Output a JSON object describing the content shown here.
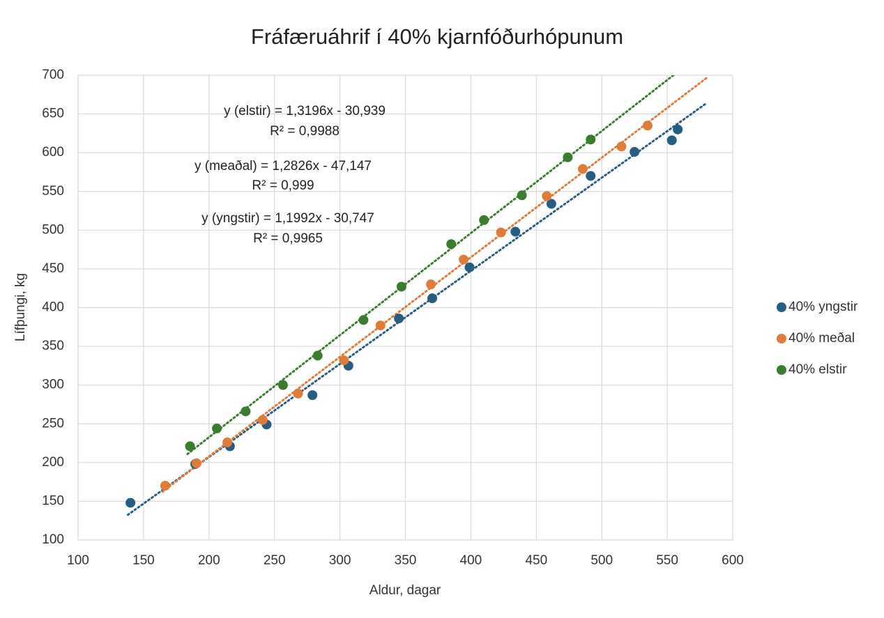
{
  "chart_data": {
    "type": "scatter",
    "title": "Fráfæruáhrif í 40% kjarnfóðurhópunum",
    "x_label": "Aldur, dagar",
    "y_label": "Lífþungi, kg",
    "xlim": [
      100,
      600
    ],
    "xticks": [
      100,
      150,
      200,
      250,
      300,
      350,
      400,
      450,
      500,
      550,
      600
    ],
    "ylim": [
      100,
      700
    ],
    "yticks": [
      100,
      150,
      200,
      250,
      300,
      350,
      400,
      450,
      500,
      550,
      600,
      650,
      700
    ],
    "grid": true,
    "legend": "right",
    "trendline": "linear",
    "series": [
      {
        "name": "40% yngstir",
        "color": "#255e85",
        "x": [
          140,
          189.5,
          216,
          244,
          279,
          306.5,
          345,
          370.5,
          399,
          434,
          461.5,
          491.5,
          525,
          553.5,
          558
        ],
        "values": [
          148,
          198,
          221,
          249,
          287,
          325,
          386,
          412,
          452,
          498,
          534,
          570,
          601,
          616,
          630
        ]
      },
      {
        "name": "40% meðal",
        "color": "#e07b39",
        "x": [
          166.5,
          190.5,
          214,
          241,
          268,
          303,
          331,
          369.5,
          394.5,
          423,
          458,
          485.5,
          515,
          535
        ],
        "values": [
          170,
          199,
          226,
          255,
          289,
          332,
          377,
          430,
          462,
          497,
          544,
          579,
          608,
          635
        ]
      },
      {
        "name": "40% elstir",
        "color": "#3b7d2e",
        "x": [
          185.5,
          206,
          228,
          256.5,
          283,
          318,
          347,
          385,
          410,
          439,
          474,
          491.5
        ],
        "values": [
          221,
          244,
          266,
          300,
          338,
          384,
          427,
          482,
          513,
          545,
          594,
          617
        ]
      }
    ],
    "annotations": [
      "y (elstir) = 1,3196x - 30,939",
      "R² = 0,9988",
      "y (meaðal) = 1,2826x - 47,147",
      "R² = 0,999",
      "y (yngstir) = 1,1992x - 30,747",
      "R² = 0,9965"
    ]
  }
}
